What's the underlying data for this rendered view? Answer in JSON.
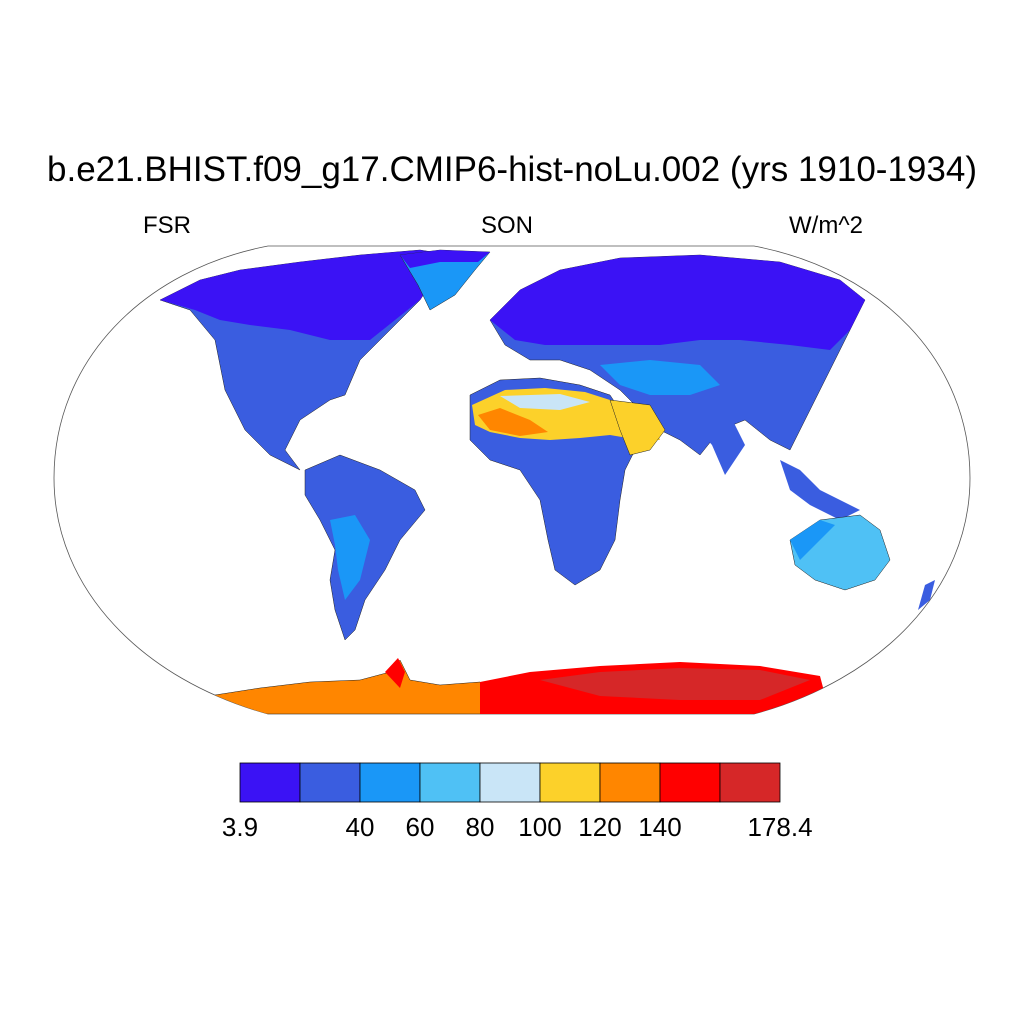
{
  "title": "b.e21.BHIST.f09_g17.CMIP6-hist-noLu.002 (yrs 1910-1934)",
  "subtitle_left": "FSR",
  "subtitle_center": "SON",
  "subtitle_right": "W/m^2",
  "colorbar": {
    "colors": [
      "#3b12f5",
      "#3a5de0",
      "#1a97f7",
      "#4fc1f5",
      "#c9e5f7",
      "#fcd12a",
      "#ff8600",
      "#ff0000",
      "#d62728"
    ],
    "labels": [
      "3.9",
      "40",
      "60",
      "80",
      "100",
      "120",
      "140",
      "178.4"
    ]
  }
}
